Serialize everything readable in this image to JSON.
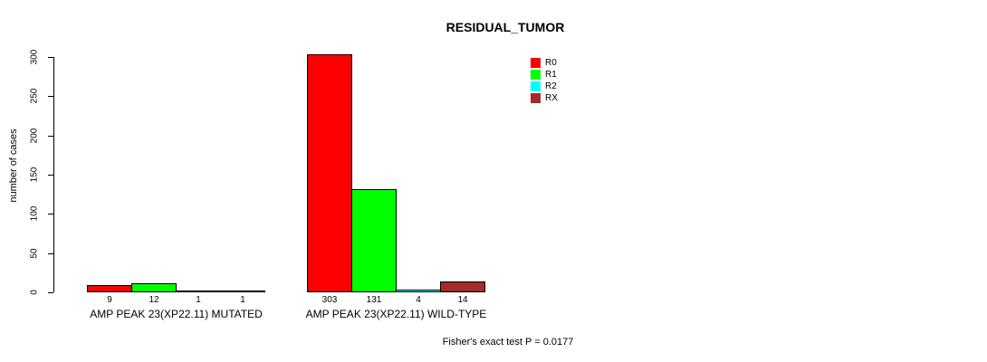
{
  "chart_data": {
    "type": "bar",
    "title": "RESIDUAL_TUMOR",
    "ylabel": "number of cases",
    "ylim": [
      0,
      300
    ],
    "yticks": [
      0,
      50,
      100,
      150,
      200,
      250,
      300
    ],
    "series": [
      "R0",
      "R1",
      "R2",
      "RX"
    ],
    "colors": [
      "#FF0000",
      "#00FF00",
      "#00FFFF",
      "#A52A2A"
    ],
    "groups": [
      {
        "label": "AMP PEAK 23(XP22.11) MUTATED",
        "values": [
          9,
          12,
          1,
          1
        ]
      },
      {
        "label": "AMP PEAK 23(XP22.11) WILD-TYPE",
        "values": [
          303,
          131,
          4,
          14
        ]
      }
    ],
    "legend_position": "top-right",
    "grid": false,
    "footnote": "Fisher's exact test P = 0.0177"
  }
}
